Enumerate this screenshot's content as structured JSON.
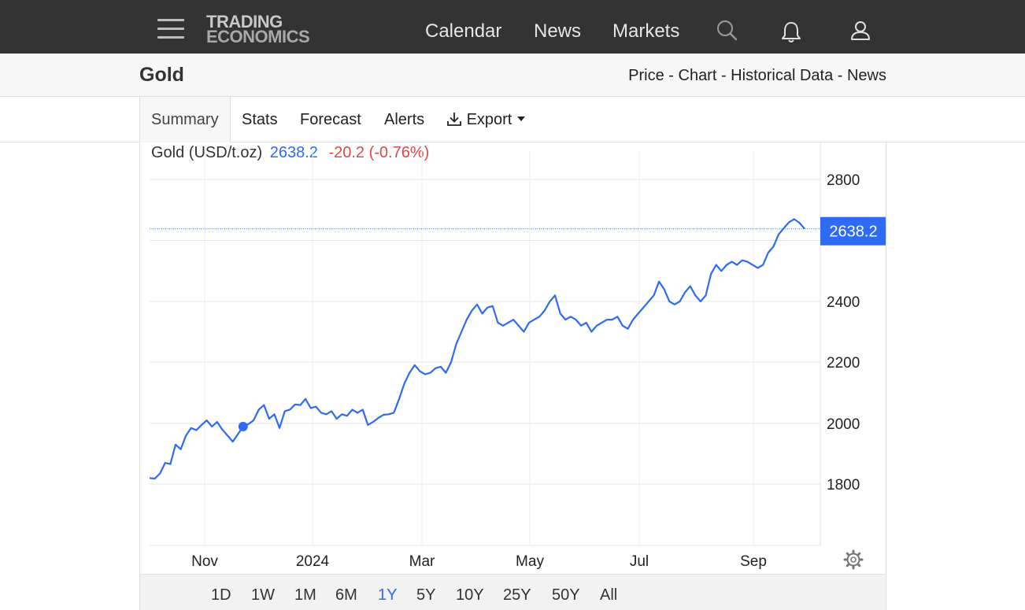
{
  "topbar": {
    "logo_line1": "TRADING",
    "logo_line2": "ECONOMICS",
    "nav": [
      "Calendar",
      "News",
      "Markets"
    ],
    "icons": [
      "menu-icon",
      "search-icon",
      "bell-icon",
      "user-icon"
    ]
  },
  "header": {
    "title": "Gold",
    "links": [
      "Price",
      "Chart",
      "Historical Data",
      "News"
    ],
    "links_text": "Price - Chart - Historical Data - News"
  },
  "tabs": {
    "summary": "Summary",
    "stats": "Stats",
    "forecast": "Forecast",
    "alerts": "Alerts",
    "export": "Export",
    "active": "Summary"
  },
  "quote": {
    "name": "Gold (USD/t.oz)",
    "price": "2638.2",
    "change": "-20.2 (-0.76%)"
  },
  "colors": {
    "accent": "#2f6bf2",
    "negative": "#e04848",
    "topbar": "#333333"
  },
  "chart_data": {
    "type": "line",
    "title": "Gold (USD/t.oz)",
    "last_value_label": "2638.2",
    "x_tick_labels": [
      "Nov",
      "2024",
      "Mar",
      "May",
      "Jul",
      "Sep"
    ],
    "y_tick_labels": [
      "2800",
      "2400",
      "2200",
      "2000",
      "1800"
    ],
    "ylim": [
      1600,
      2800
    ],
    "grid": true,
    "series": [
      {
        "values": [
          1820,
          1818,
          1835,
          1870,
          1866,
          1930,
          1915,
          1960,
          1985,
          1978,
          1995,
          2010,
          1990,
          2005,
          1980,
          1960,
          1940,
          1965,
          1990,
          1998,
          2010,
          2045,
          2060,
          2015,
          2030,
          1985,
          2040,
          2045,
          2062,
          2060,
          2080,
          2050,
          2055,
          2035,
          2030,
          2040,
          2015,
          2030,
          2025,
          2045,
          2035,
          2045,
          1995,
          2005,
          2018,
          2028,
          2030,
          2035,
          2080,
          2130,
          2165,
          2190,
          2170,
          2160,
          2165,
          2180,
          2185,
          2165,
          2200,
          2260,
          2300,
          2340,
          2370,
          2390,
          2360,
          2380,
          2385,
          2330,
          2320,
          2330,
          2340,
          2320,
          2300,
          2330,
          2340,
          2350,
          2370,
          2400,
          2420,
          2360,
          2340,
          2350,
          2340,
          2320,
          2330,
          2300,
          2320,
          2330,
          2340,
          2340,
          2350,
          2320,
          2310,
          2340,
          2360,
          2380,
          2400,
          2420,
          2465,
          2440,
          2400,
          2390,
          2400,
          2430,
          2450,
          2420,
          2400,
          2420,
          2490,
          2520,
          2500,
          2520,
          2530,
          2520,
          2535,
          2530,
          2520,
          2510,
          2520,
          2560,
          2580,
          2620,
          2640,
          2660,
          2670,
          2658,
          2638.2
        ]
      }
    ]
  },
  "range_buttons": [
    "1D",
    "1W",
    "1M",
    "6M",
    "1Y",
    "5Y",
    "10Y",
    "25Y",
    "50Y",
    "All"
  ],
  "active_range": "1Y"
}
